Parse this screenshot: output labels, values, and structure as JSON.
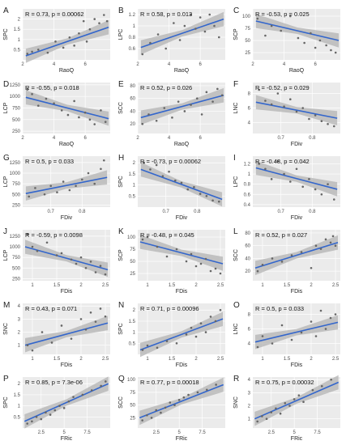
{
  "chart_data": [
    {
      "type": "scatter",
      "panel": "A",
      "xlabel": "RaoQ",
      "ylabel": "SPC",
      "stat": "R = 0.73, p = 0.00062",
      "xlim": [
        2,
        7.6
      ],
      "ylim": [
        0,
        2.5
      ],
      "xticks": [
        2,
        4,
        6
      ],
      "yticks": [
        0.5,
        1.0,
        1.5,
        2.0
      ],
      "x": [
        2.3,
        2.6,
        3.0,
        3.6,
        4.1,
        4.6,
        5.0,
        5.3,
        5.6,
        5.9,
        6.1,
        6.3,
        6.6,
        6.9,
        7.2,
        7.4
      ],
      "y": [
        0.3,
        0.4,
        0.5,
        0.35,
        0.9,
        0.6,
        1.1,
        0.7,
        1.3,
        1.9,
        0.9,
        1.5,
        2.0,
        1.8,
        2.2,
        1.9
      ],
      "fit": [
        [
          2.2,
          0.2
        ],
        [
          7.5,
          1.6
        ]
      ]
    },
    {
      "type": "scatter",
      "panel": "B",
      "xlabel": "RaoQ",
      "ylabel": "LPC",
      "stat": "R = 0.58, p = 0.013",
      "xlim": [
        2,
        7.6
      ],
      "ylim": [
        0.4,
        1.3
      ],
      "xticks": [
        2,
        4,
        6
      ],
      "yticks": [
        0.6,
        0.8,
        1.0,
        1.2
      ],
      "x": [
        2.3,
        2.8,
        3.3,
        3.8,
        4.3,
        4.7,
        5.0,
        5.4,
        5.7,
        6.0,
        6.3,
        6.6,
        6.9,
        7.2
      ],
      "y": [
        0.5,
        0.7,
        0.85,
        0.6,
        1.05,
        0.75,
        1.0,
        1.2,
        0.95,
        1.15,
        0.9,
        1.2,
        1.0,
        0.8
      ],
      "fit": [
        [
          2.2,
          0.62
        ],
        [
          7.5,
          1.12
        ]
      ]
    },
    {
      "type": "scatter",
      "panel": "C",
      "xlabel": "RaoQ",
      "ylabel": "SCP",
      "stat": "R = -0.53, p = 0.025",
      "xlim": [
        2,
        7.6
      ],
      "ylim": [
        10,
        115
      ],
      "xticks": [
        2,
        4,
        6
      ],
      "yticks": [
        25,
        50,
        75,
        100
      ],
      "x": [
        2.3,
        2.8,
        3.2,
        3.8,
        4.4,
        4.9,
        5.3,
        5.7,
        6.0,
        6.3,
        6.7,
        7.0,
        7.3
      ],
      "y": [
        95,
        60,
        80,
        70,
        100,
        55,
        45,
        65,
        35,
        50,
        40,
        30,
        25
      ],
      "fit": [
        [
          2.2,
          90
        ],
        [
          7.5,
          50
        ]
      ]
    },
    {
      "type": "scatter",
      "panel": "D",
      "xlabel": "RaoQ",
      "ylabel": "LCP",
      "stat": "R = -0.55, p = 0.018",
      "xlim": [
        2,
        7.6
      ],
      "ylim": [
        200,
        1300
      ],
      "xticks": [
        2,
        4,
        6
      ],
      "yticks": [
        250,
        500,
        750,
        1000,
        1250
      ],
      "x": [
        2.3,
        2.6,
        3.0,
        3.5,
        4.0,
        4.5,
        4.9,
        5.3,
        5.6,
        6.0,
        6.3,
        6.6,
        7.0,
        7.3
      ],
      "y": [
        1150,
        1050,
        800,
        950,
        850,
        700,
        600,
        900,
        550,
        650,
        500,
        400,
        700,
        450
      ],
      "fit": [
        [
          2.2,
          980
        ],
        [
          7.5,
          520
        ]
      ]
    },
    {
      "type": "scatter",
      "panel": "E",
      "xlabel": "RaoQ",
      "ylabel": "SCC",
      "stat": "R = 0.52, p = 0.026",
      "xlim": [
        2,
        7.6
      ],
      "ylim": [
        5,
        85
      ],
      "xticks": [
        2,
        4,
        6
      ],
      "yticks": [
        20,
        40,
        60,
        80
      ],
      "x": [
        2.3,
        2.7,
        3.2,
        3.7,
        4.2,
        4.6,
        5.0,
        5.4,
        5.8,
        6.1,
        6.4,
        6.8,
        7.1,
        7.4
      ],
      "y": [
        20,
        35,
        25,
        45,
        30,
        55,
        40,
        50,
        60,
        35,
        70,
        55,
        75,
        65
      ],
      "fit": [
        [
          2.2,
          30
        ],
        [
          7.5,
          65
        ]
      ]
    },
    {
      "type": "scatter",
      "panel": "F",
      "xlabel": "FDiv",
      "ylabel": "LNC",
      "stat": "R = -0.52, p = 0.029",
      "xlim": [
        0.61,
        0.89
      ],
      "ylim": [
        2.5,
        9.5
      ],
      "xticks": [
        0.7,
        0.8
      ],
      "yticks": [
        4,
        6,
        8
      ],
      "x": [
        0.63,
        0.65,
        0.67,
        0.69,
        0.71,
        0.73,
        0.75,
        0.77,
        0.79,
        0.81,
        0.83,
        0.85,
        0.87
      ],
      "y": [
        8.5,
        7.0,
        6.5,
        8.0,
        6.2,
        7.2,
        5.5,
        6.0,
        4.5,
        5.0,
        4.2,
        3.8,
        3.5
      ],
      "fit": [
        [
          0.62,
          6.8
        ],
        [
          0.88,
          4.6
        ]
      ]
    },
    {
      "type": "scatter",
      "panel": "G",
      "xlabel": "FDiv",
      "ylabel": "LCP",
      "stat": "R = 0.5, p = 0.033",
      "xlim": [
        0.61,
        0.89
      ],
      "ylim": [
        200,
        1400
      ],
      "xticks": [
        0.7,
        0.8
      ],
      "yticks": [
        250,
        500,
        750,
        1000,
        1250
      ],
      "x": [
        0.63,
        0.65,
        0.68,
        0.7,
        0.72,
        0.74,
        0.76,
        0.78,
        0.8,
        0.82,
        0.84,
        0.86,
        0.87
      ],
      "y": [
        450,
        650,
        500,
        700,
        550,
        800,
        600,
        700,
        850,
        1000,
        750,
        1100,
        1300
      ],
      "fit": [
        [
          0.62,
          520
        ],
        [
          0.88,
          900
        ]
      ]
    },
    {
      "type": "scatter",
      "panel": "H",
      "xlabel": "FDiv",
      "ylabel": "SPC",
      "stat": "R = -0.73, p = 0.00062",
      "xlim": [
        0.61,
        0.89
      ],
      "ylim": [
        0,
        2.3
      ],
      "xticks": [
        0.7,
        0.8
      ],
      "yticks": [
        0.5,
        1.0,
        1.5,
        2.0
      ],
      "x": [
        0.63,
        0.65,
        0.67,
        0.69,
        0.71,
        0.73,
        0.75,
        0.77,
        0.79,
        0.81,
        0.83,
        0.85,
        0.87
      ],
      "y": [
        2.0,
        1.7,
        1.9,
        1.4,
        1.6,
        1.2,
        1.1,
        0.8,
        0.9,
        0.6,
        0.5,
        0.3,
        0.25
      ],
      "fit": [
        [
          0.62,
          1.7
        ],
        [
          0.88,
          0.35
        ]
      ]
    },
    {
      "type": "scatter",
      "panel": "I",
      "xlabel": "FDiv",
      "ylabel": "LPC",
      "stat": "R = -0.48, p = 0.042",
      "xlim": [
        0.61,
        0.89
      ],
      "ylim": [
        0.35,
        1.35
      ],
      "xticks": [
        0.7,
        0.8
      ],
      "yticks": [
        0.4,
        0.6,
        0.8,
        1.0,
        1.2
      ],
      "x": [
        0.63,
        0.65,
        0.67,
        0.69,
        0.71,
        0.73,
        0.75,
        0.77,
        0.79,
        0.81,
        0.83,
        0.85,
        0.87
      ],
      "y": [
        1.2,
        1.1,
        0.9,
        1.25,
        1.0,
        0.85,
        1.1,
        0.75,
        0.9,
        0.7,
        0.6,
        0.8,
        0.5
      ],
      "fit": [
        [
          0.62,
          1.12
        ],
        [
          0.88,
          0.7
        ]
      ]
    },
    {
      "type": "scatter",
      "panel": "J",
      "xlabel": "FDis",
      "ylabel": "LCP",
      "stat": "R = -0.59, p = 0.0098",
      "xlim": [
        0.8,
        2.6
      ],
      "ylim": [
        200,
        1400
      ],
      "xticks": [
        1.0,
        1.5,
        2.0,
        2.5
      ],
      "yticks": [
        250,
        500,
        750,
        1000,
        1250
      ],
      "x": [
        0.9,
        1.0,
        1.1,
        1.3,
        1.5,
        1.6,
        1.8,
        1.9,
        2.0,
        2.1,
        2.2,
        2.3,
        2.4,
        2.5
      ],
      "y": [
        1300,
        1000,
        900,
        1100,
        800,
        850,
        700,
        600,
        750,
        500,
        650,
        400,
        550,
        350
      ],
      "fit": [
        [
          0.85,
          1000
        ],
        [
          2.55,
          460
        ]
      ]
    },
    {
      "type": "scatter",
      "panel": "K",
      "xlabel": "FDis",
      "ylabel": "SCP",
      "stat": "R = -0.48, p = 0.045",
      "xlim": [
        0.8,
        2.6
      ],
      "ylim": [
        10,
        115
      ],
      "xticks": [
        1.0,
        1.5,
        2.0,
        2.5
      ],
      "yticks": [
        25,
        50,
        75,
        100
      ],
      "x": [
        0.9,
        1.0,
        1.2,
        1.4,
        1.6,
        1.8,
        1.9,
        2.0,
        2.1,
        2.2,
        2.3,
        2.4,
        2.5
      ],
      "y": [
        95,
        100,
        80,
        60,
        75,
        50,
        65,
        40,
        45,
        55,
        30,
        35,
        25
      ],
      "fit": [
        [
          0.85,
          90
        ],
        [
          2.55,
          45
        ]
      ]
    },
    {
      "type": "scatter",
      "panel": "L",
      "xlabel": "FDis",
      "ylabel": "SCC",
      "stat": "R = 0.52, p = 0.027",
      "xlim": [
        0.8,
        2.6
      ],
      "ylim": [
        5,
        85
      ],
      "xticks": [
        1.0,
        1.5,
        2.0,
        2.5
      ],
      "yticks": [
        20,
        40,
        60,
        80
      ],
      "x": [
        0.9,
        1.0,
        1.2,
        1.4,
        1.6,
        1.8,
        2.0,
        2.1,
        2.2,
        2.3,
        2.4,
        2.45,
        2.5
      ],
      "y": [
        20,
        30,
        40,
        35,
        45,
        50,
        25,
        60,
        55,
        70,
        65,
        75,
        60
      ],
      "fit": [
        [
          0.85,
          25
        ],
        [
          2.55,
          65
        ]
      ]
    },
    {
      "type": "scatter",
      "panel": "M",
      "xlabel": "FDis",
      "ylabel": "SNC",
      "stat": "R = 0.43, p = 0.071",
      "xlim": [
        0.8,
        2.6
      ],
      "ylim": [
        0.3,
        4.2
      ],
      "xticks": [
        1.0,
        1.5,
        2.0,
        2.5
      ],
      "yticks": [
        1,
        2,
        3,
        4
      ],
      "x": [
        0.9,
        1.0,
        1.2,
        1.4,
        1.6,
        1.8,
        2.0,
        2.1,
        2.2,
        2.3,
        2.4,
        2.5
      ],
      "y": [
        1.0,
        0.6,
        2.0,
        1.2,
        2.5,
        1.5,
        3.0,
        2.2,
        3.5,
        2.8,
        3.8,
        3.2
      ],
      "fit": [
        [
          0.85,
          1.0
        ],
        [
          2.55,
          2.7
        ]
      ]
    },
    {
      "type": "scatter",
      "panel": "N",
      "xlabel": "FDis",
      "ylabel": "SPC",
      "stat": "R = 0.71, p = 0.00096",
      "xlim": [
        0.8,
        2.6
      ],
      "ylim": [
        0,
        2.3
      ],
      "xticks": [
        1.0,
        1.5,
        2.0,
        2.5
      ],
      "yticks": [
        0.5,
        1.0,
        1.5,
        2.0
      ],
      "x": [
        0.9,
        1.0,
        1.2,
        1.4,
        1.6,
        1.8,
        1.9,
        2.0,
        2.1,
        2.2,
        2.3,
        2.4,
        2.5
      ],
      "y": [
        0.2,
        0.4,
        0.3,
        0.6,
        0.5,
        0.9,
        1.2,
        0.8,
        1.4,
        1.0,
        1.7,
        1.5,
        2.0
      ],
      "fit": [
        [
          0.85,
          0.2
        ],
        [
          2.55,
          1.6
        ]
      ]
    },
    {
      "type": "scatter",
      "panel": "O",
      "xlabel": "FDis",
      "ylabel": "LNC",
      "stat": "R = 0.5, p = 0.033",
      "xlim": [
        0.8,
        2.6
      ],
      "ylim": [
        2.5,
        9.5
      ],
      "xticks": [
        1.0,
        1.5,
        2.0,
        2.5
      ],
      "yticks": [
        4,
        6,
        8
      ],
      "x": [
        0.9,
        1.0,
        1.2,
        1.4,
        1.6,
        1.8,
        2.0,
        2.1,
        2.2,
        2.3,
        2.4,
        2.5
      ],
      "y": [
        3.5,
        5.0,
        4.0,
        6.5,
        4.5,
        5.5,
        7.0,
        5.0,
        8.5,
        6.0,
        7.5,
        8.0
      ],
      "fit": [
        [
          0.85,
          4.2
        ],
        [
          2.55,
          6.9
        ]
      ]
    },
    {
      "type": "scatter",
      "panel": "P",
      "xlabel": "FRic",
      "ylabel": "SPC",
      "stat": "R = 0.85, p = 7.3e-06",
      "xlim": [
        0.5,
        10
      ],
      "ylim": [
        0,
        2.3
      ],
      "xticks": [
        2.5,
        5.0,
        7.5
      ],
      "yticks": [
        0.5,
        1.0,
        1.5,
        2.0
      ],
      "x": [
        1.0,
        1.5,
        2.0,
        2.5,
        3.0,
        3.5,
        4.0,
        4.5,
        5.0,
        5.5,
        6.0,
        7.0,
        8.0,
        9.0,
        9.5
      ],
      "y": [
        0.2,
        0.3,
        0.5,
        0.4,
        0.7,
        0.6,
        0.8,
        1.0,
        0.9,
        1.2,
        1.4,
        1.5,
        1.7,
        1.9,
        2.1
      ],
      "fit": [
        [
          0.7,
          0.3
        ],
        [
          9.8,
          2.0
        ]
      ]
    },
    {
      "type": "scatter",
      "panel": "Q",
      "xlabel": "FRic",
      "ylabel": "SCC",
      "stat": "R = 0.77, p = 0.00018",
      "xlim": [
        0.5,
        10
      ],
      "ylim": [
        5,
        105
      ],
      "xticks": [
        2.5,
        5.0,
        7.5
      ],
      "yticks": [
        25,
        50,
        75,
        100
      ],
      "x": [
        1.0,
        1.5,
        2.0,
        2.5,
        3.0,
        3.5,
        4.0,
        4.5,
        5.0,
        5.5,
        6.0,
        7.0,
        8.0,
        9.0
      ],
      "y": [
        20,
        30,
        25,
        40,
        35,
        45,
        55,
        50,
        60,
        65,
        70,
        75,
        80,
        90
      ],
      "fit": [
        [
          0.7,
          25
        ],
        [
          9.8,
          90
        ]
      ]
    },
    {
      "type": "scatter",
      "panel": "R",
      "xlabel": "FRic",
      "ylabel": "SNC",
      "stat": "R = 0.75, p = 0.00032",
      "xlim": [
        0.5,
        10
      ],
      "ylim": [
        0.3,
        4.2
      ],
      "xticks": [
        2.5,
        5.0,
        7.5
      ],
      "yticks": [
        1,
        2,
        3,
        4
      ],
      "x": [
        1.0,
        1.5,
        2.0,
        2.5,
        3.0,
        3.5,
        4.0,
        4.5,
        5.0,
        5.5,
        6.0,
        7.0,
        8.0,
        9.0
      ],
      "y": [
        0.8,
        1.2,
        1.0,
        1.5,
        1.8,
        1.4,
        2.2,
        2.0,
        2.5,
        2.8,
        2.3,
        3.2,
        3.5,
        4.0
      ],
      "fit": [
        [
          0.7,
          1.0
        ],
        [
          9.8,
          3.8
        ]
      ]
    }
  ],
  "colors": {
    "panel_bg": "#ebebeb",
    "grid": "#ffffff",
    "point": "#666666",
    "fit": "#3366cc",
    "ribbon": "#b3b3b3"
  }
}
